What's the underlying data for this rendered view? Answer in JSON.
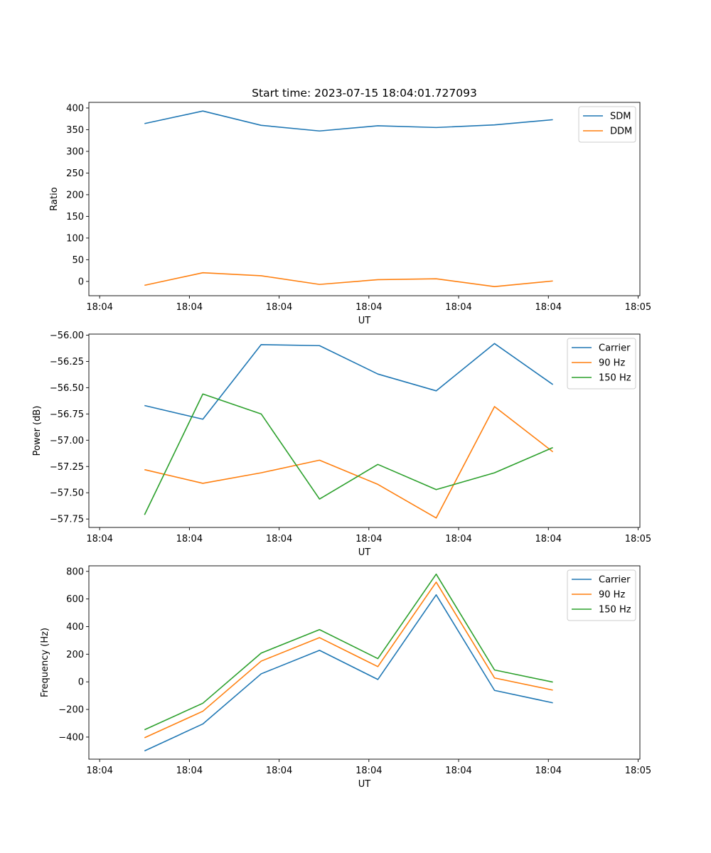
{
  "title": "Start time: 2023-07-15 18:04:01.727093",
  "colors": {
    "blue": "#1f77b4",
    "orange": "#ff7f0e",
    "green": "#2ca02c"
  },
  "chart_data": [
    {
      "type": "line",
      "ylabel": "Ratio",
      "xlabel": "UT",
      "ylim": [
        -33,
        413
      ],
      "yticks": [
        0,
        50,
        100,
        150,
        200,
        250,
        300,
        350,
        400
      ],
      "ytick_labels": [
        "0",
        "50",
        "100",
        "150",
        "200",
        "250",
        "300",
        "350",
        "400"
      ],
      "xticks": [
        0,
        1,
        2,
        3,
        4,
        5,
        6
      ],
      "xtick_labels": [
        "18:04",
        "18:04",
        "18:04",
        "18:04",
        "18:04",
        "18:04",
        "18:05"
      ],
      "xlim": [
        -0.12,
        6.02
      ],
      "x": [
        0.5,
        1.15,
        1.8,
        2.45,
        3.1,
        3.75,
        4.4,
        5.05
      ],
      "legend_position": "top-right",
      "series": [
        {
          "name": "SDM",
          "color": "#1f77b4",
          "values": [
            364,
            393,
            360,
            347,
            359,
            355,
            361,
            373
          ]
        },
        {
          "name": "DDM",
          "color": "#ff7f0e",
          "values": [
            -9,
            20,
            13,
            -7,
            4,
            6,
            -12,
            1
          ]
        }
      ]
    },
    {
      "type": "line",
      "ylabel": "Power (dB)",
      "xlabel": "UT",
      "ylim": [
        -57.83,
        -55.99
      ],
      "yticks": [
        -57.75,
        -57.5,
        -57.25,
        -57.0,
        -56.75,
        -56.5,
        -56.25,
        -56.0
      ],
      "ytick_labels": [
        "−57.75",
        "−57.50",
        "−57.25",
        "−57.00",
        "−56.75",
        "−56.50",
        "−56.25",
        "−56.00"
      ],
      "xticks": [
        0,
        1,
        2,
        3,
        4,
        5,
        6
      ],
      "xtick_labels": [
        "18:04",
        "18:04",
        "18:04",
        "18:04",
        "18:04",
        "18:04",
        "18:05"
      ],
      "xlim": [
        -0.12,
        6.02
      ],
      "x": [
        0.5,
        1.15,
        1.8,
        2.45,
        3.1,
        3.75,
        4.4,
        5.05
      ],
      "legend_position": "top-right",
      "series": [
        {
          "name": "Carrier",
          "color": "#1f77b4",
          "values": [
            -56.67,
            -56.8,
            -56.09,
            -56.1,
            -56.37,
            -56.53,
            -56.08,
            -56.47
          ]
        },
        {
          "name": "90 Hz",
          "color": "#ff7f0e",
          "values": [
            -57.28,
            -57.41,
            -57.31,
            -57.19,
            -57.42,
            -57.74,
            -56.68,
            -57.11
          ]
        },
        {
          "name": "150 Hz",
          "color": "#2ca02c",
          "values": [
            -57.71,
            -56.56,
            -56.75,
            -57.56,
            -57.23,
            -57.47,
            -57.31,
            -57.07
          ]
        }
      ]
    },
    {
      "type": "line",
      "ylabel": "Frequency (Hz)",
      "xlabel": "UT",
      "ylim": [
        -560,
        840
      ],
      "yticks": [
        -400,
        -200,
        0,
        200,
        400,
        600,
        800
      ],
      "ytick_labels": [
        "−400",
        "−200",
        "0",
        "200",
        "400",
        "600",
        "800"
      ],
      "xticks": [
        0,
        1,
        2,
        3,
        4,
        5,
        6
      ],
      "xtick_labels": [
        "18:04",
        "18:04",
        "18:04",
        "18:04",
        "18:04",
        "18:04",
        "18:05"
      ],
      "xlim": [
        -0.12,
        6.02
      ],
      "x": [
        0.5,
        1.15,
        1.8,
        2.45,
        3.1,
        3.75,
        4.4,
        5.05
      ],
      "legend_position": "top-right",
      "series": [
        {
          "name": "Carrier",
          "color": "#1f77b4",
          "values": [
            -500,
            -305,
            58,
            228,
            17,
            630,
            -62,
            -152
          ]
        },
        {
          "name": "90 Hz",
          "color": "#ff7f0e",
          "values": [
            -405,
            -213,
            150,
            320,
            110,
            722,
            28,
            -60
          ]
        },
        {
          "name": "150 Hz",
          "color": "#2ca02c",
          "values": [
            -347,
            -155,
            208,
            378,
            168,
            780,
            86,
            -2
          ]
        }
      ]
    }
  ]
}
